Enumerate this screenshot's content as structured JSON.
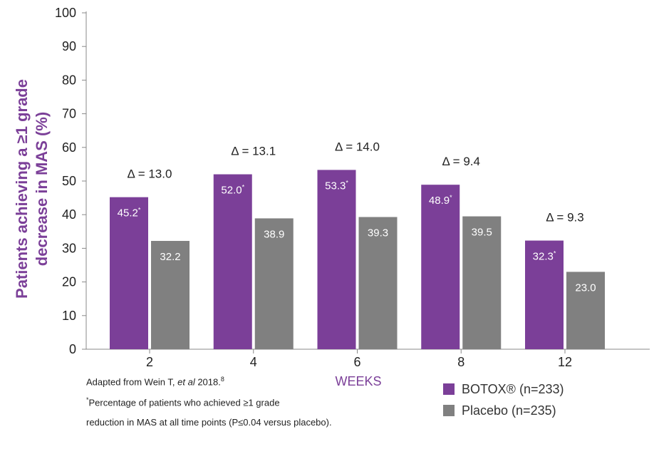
{
  "chart_data": {
    "type": "bar",
    "ylabel_line1": "Patients achieving a ≥1 grade",
    "ylabel_line2": "decrease in MAS (%)",
    "xlabel": "WEEKS",
    "ylim": [
      0,
      100
    ],
    "yticks": [
      0,
      10,
      20,
      30,
      40,
      50,
      60,
      70,
      80,
      90,
      100
    ],
    "categories": [
      "2",
      "4",
      "6",
      "8",
      "12"
    ],
    "series": [
      {
        "name": "BOTOX® (n=233)",
        "color": "#7b3f98",
        "values": [
          45.2,
          52.0,
          53.3,
          48.9,
          32.3
        ],
        "labels": [
          "45.2",
          "52.0",
          "53.3",
          "48.9",
          "32.3"
        ],
        "label_marker": "*"
      },
      {
        "name": "Placebo (n=235)",
        "color": "#808080",
        "values": [
          32.2,
          38.9,
          39.3,
          39.5,
          23.0
        ],
        "labels": [
          "32.2",
          "38.9",
          "39.3",
          "39.5",
          "23.0"
        ],
        "label_marker": ""
      }
    ],
    "delta_labels": [
      "Δ = 13.0",
      "Δ = 13.1",
      "Δ = 14.0",
      "Δ = 9.4",
      "Δ = 9.3"
    ]
  },
  "footnotes": {
    "source_prefix": "Adapted from Wein T, ",
    "source_italic": "et al",
    "source_suffix": " 2018.",
    "source_ref": "8",
    "asterisk": "*",
    "note_line1": "Percentage of patients who achieved ≥1 grade",
    "note_line2": "reduction in MAS at all time points (P≤0.04 versus placebo)."
  },
  "legend": {
    "items": [
      {
        "label": "BOTOX® (n=233)",
        "color": "#7b3f98"
      },
      {
        "label": "Placebo (n=235)",
        "color": "#808080"
      }
    ]
  },
  "colors": {
    "accent": "#7b3f98",
    "placebo": "#808080",
    "axis": "#888888"
  }
}
